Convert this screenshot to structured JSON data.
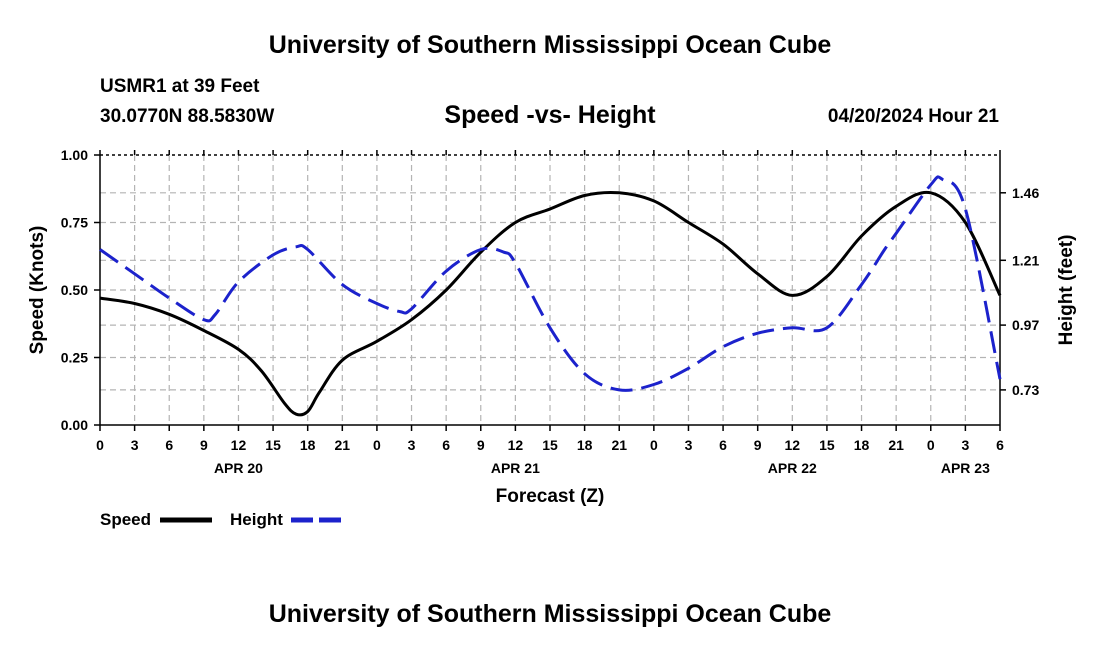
{
  "header": {
    "title_top": "University of Southern Mississippi Ocean Cube",
    "station": "USMR1 at 39 Feet",
    "coords": "30.0770N  88.5830W",
    "subtitle": "Speed -vs- Height",
    "datetime": "04/20/2024 Hour 21",
    "title_bottom": "University of Southern Mississippi Ocean Cube"
  },
  "chart_data": {
    "type": "line",
    "title": "Speed -vs- Height",
    "xlabel": "Forecast (Z)",
    "ylabel": "Speed (Knots)",
    "y2label": "Height (feet)",
    "xlim": [
      0,
      78
    ],
    "x_unit": "hours from APR 20 00Z",
    "x_tick_values": [
      0,
      3,
      6,
      9,
      12,
      15,
      18,
      21,
      24,
      27,
      30,
      33,
      36,
      39,
      42,
      45,
      48,
      51,
      54,
      57,
      60,
      63,
      66,
      69,
      72,
      75,
      78
    ],
    "x_tick_labels": [
      "0",
      "3",
      "6",
      "9",
      "12",
      "15",
      "18",
      "21",
      "0",
      "3",
      "6",
      "9",
      "12",
      "15",
      "18",
      "21",
      "0",
      "3",
      "6",
      "9",
      "12",
      "15",
      "18",
      "21",
      "0",
      "3",
      "6"
    ],
    "day_labels": [
      {
        "x": 12,
        "label": "APR 20"
      },
      {
        "x": 36,
        "label": "APR 21"
      },
      {
        "x": 60,
        "label": "APR 22"
      },
      {
        "x": 75,
        "label": "APR 23"
      }
    ],
    "ylim": [
      0,
      1.0
    ],
    "y_ticks": [
      "0.00",
      "0.25",
      "0.50",
      "0.75",
      "1.00"
    ],
    "y_tick_values": [
      0,
      0.25,
      0.5,
      0.75,
      1.0
    ],
    "y2lim": [
      0.6,
      1.6
    ],
    "y2_ticks": [
      "0.73",
      "0.97",
      "1.21",
      "1.46"
    ],
    "y2_tick_values": [
      0.73,
      0.97,
      1.21,
      1.46
    ],
    "grid": true,
    "legend_position": "bottom-left",
    "series": [
      {
        "name": "Speed",
        "axis": "left",
        "color": "#000000",
        "dash": "solid",
        "x": [
          0,
          3,
          6,
          9,
          12,
          14,
          16,
          17,
          18,
          19,
          21,
          24,
          27,
          30,
          33,
          36,
          39,
          42,
          45,
          48,
          51,
          54,
          57,
          60,
          63,
          66,
          69,
          72,
          75,
          78
        ],
        "values": [
          0.47,
          0.45,
          0.41,
          0.35,
          0.28,
          0.2,
          0.08,
          0.04,
          0.05,
          0.12,
          0.24,
          0.31,
          0.39,
          0.5,
          0.64,
          0.75,
          0.8,
          0.85,
          0.86,
          0.83,
          0.75,
          0.67,
          0.56,
          0.48,
          0.55,
          0.7,
          0.81,
          0.86,
          0.75,
          0.48
        ]
      },
      {
        "name": "Height",
        "axis": "right",
        "color": "#1c22cc",
        "dash": "dashed",
        "x": [
          0,
          3,
          6,
          9,
          10,
          12,
          15,
          17,
          18,
          21,
          24,
          26,
          27,
          30,
          33,
          35,
          36,
          39,
          42,
          45,
          48,
          51,
          54,
          57,
          60,
          63,
          66,
          68,
          69,
          72,
          73,
          75,
          78
        ],
        "values": [
          1.25,
          1.16,
          1.07,
          0.99,
          1.01,
          1.13,
          1.23,
          1.26,
          1.25,
          1.12,
          1.05,
          1.02,
          1.03,
          1.17,
          1.25,
          1.24,
          1.2,
          0.96,
          0.79,
          0.73,
          0.75,
          0.81,
          0.89,
          0.94,
          0.96,
          0.96,
          1.12,
          1.25,
          1.31,
          1.49,
          1.51,
          1.4,
          0.77
        ]
      }
    ]
  },
  "legend": [
    {
      "label": "Speed",
      "color": "#000000",
      "dash": "solid"
    },
    {
      "label": "Height",
      "color": "#1c22cc",
      "dash": "dashed"
    }
  ]
}
